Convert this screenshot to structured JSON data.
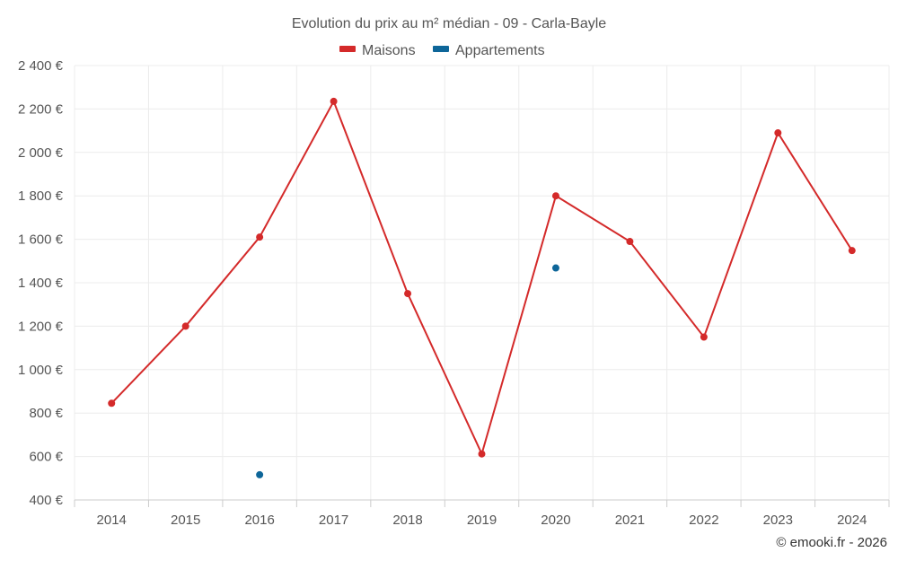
{
  "chart_data": {
    "type": "line",
    "title": "Evolution du prix au m² médian - 09 - Carla-Bayle",
    "xlabel": "",
    "ylabel": "",
    "categories": [
      "2014",
      "2015",
      "2016",
      "2017",
      "2018",
      "2019",
      "2020",
      "2021",
      "2022",
      "2023",
      "2024"
    ],
    "ylim": [
      400,
      2400
    ],
    "yticks": [
      400,
      600,
      800,
      1000,
      1200,
      1400,
      1600,
      1800,
      2000,
      2200,
      2400
    ],
    "ytick_labels": [
      "400 €",
      "600 €",
      "800 €",
      "1 000 €",
      "1 200 €",
      "1 400 €",
      "1 600 €",
      "1 800 €",
      "2 000 €",
      "2 200 €",
      "2 400 €"
    ],
    "legend_position": "top-center",
    "series": [
      {
        "name": "Maisons",
        "color": "#d42a2a",
        "values": [
          845,
          1200,
          1610,
          2235,
          1350,
          612,
          1800,
          1590,
          1150,
          2090,
          1548
        ]
      },
      {
        "name": "Appartements",
        "color": "#0e6699",
        "values": [
          null,
          null,
          516,
          null,
          null,
          null,
          1468,
          null,
          null,
          null,
          null
        ]
      }
    ]
  },
  "credit": "© emooki.fr - 2026"
}
